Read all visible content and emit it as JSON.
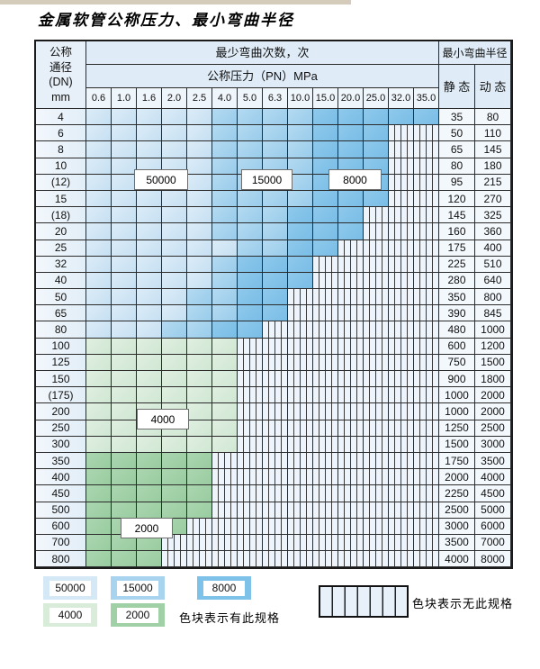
{
  "title": "金属软管公称压力、最小弯曲半径",
  "table": {
    "header": {
      "dn_lines": [
        "公称",
        "通径",
        "(DN)",
        "mm"
      ],
      "bend_cycles": "最少弯曲次数，次",
      "pressure_title": "公称压力（PN）MPa",
      "min_radius": "最小弯曲半径",
      "static_label": "静 态",
      "dynamic_label": "动 态"
    },
    "pressure_cols": [
      "0.6",
      "1.0",
      "1.6",
      "2.0",
      "2.5",
      "4.0",
      "5.0",
      "6.3",
      "10.0",
      "15.0",
      "20.0",
      "25.0",
      "32.0",
      "35.0"
    ],
    "rows": [
      {
        "dn": "4",
        "zone": "blue",
        "max": 13,
        "light": 4,
        "med": 8,
        "static": "35",
        "dynamic": "80"
      },
      {
        "dn": "6",
        "zone": "blue",
        "max": 11,
        "light": 4,
        "med": 8,
        "static": "50",
        "dynamic": "110"
      },
      {
        "dn": "8",
        "zone": "blue",
        "max": 11,
        "light": 4,
        "med": 8,
        "static": "65",
        "dynamic": "145"
      },
      {
        "dn": "10",
        "zone": "blue",
        "max": 11,
        "light": 4,
        "med": 8,
        "static": "80",
        "dynamic": "180"
      },
      {
        "dn": "(12)",
        "zone": "blue",
        "max": 11,
        "light": 4,
        "med": 8,
        "static": "95",
        "dynamic": "215"
      },
      {
        "dn": "15",
        "zone": "blue",
        "max": 11,
        "light": 4,
        "med": 8,
        "static": "120",
        "dynamic": "270"
      },
      {
        "dn": "(18)",
        "zone": "blue",
        "max": 10,
        "light": 4,
        "med": 7,
        "static": "145",
        "dynamic": "325"
      },
      {
        "dn": "20",
        "zone": "blue",
        "max": 10,
        "light": 4,
        "med": 7,
        "static": "160",
        "dynamic": "360"
      },
      {
        "dn": "25",
        "zone": "blue",
        "max": 9,
        "light": 5,
        "med": 7,
        "static": "175",
        "dynamic": "400"
      },
      {
        "dn": "32",
        "zone": "blue",
        "max": 8,
        "light": 4,
        "med": 5,
        "static": "225",
        "dynamic": "510"
      },
      {
        "dn": "40",
        "zone": "blue",
        "max": 8,
        "light": 4,
        "med": 5,
        "static": "280",
        "dynamic": "640"
      },
      {
        "dn": "50",
        "zone": "blue",
        "max": 7,
        "light": 3,
        "med": 5,
        "static": "350",
        "dynamic": "800"
      },
      {
        "dn": "65",
        "zone": "blue",
        "max": 7,
        "light": 3,
        "med": 5,
        "static": "390",
        "dynamic": "845"
      },
      {
        "dn": "80",
        "zone": "blue",
        "max": 6,
        "light": 2,
        "med": 4,
        "static": "480",
        "dynamic": "1000"
      },
      {
        "dn": "100",
        "zone": "g4",
        "max": 5,
        "static": "600",
        "dynamic": "1200"
      },
      {
        "dn": "125",
        "zone": "g4",
        "max": 5,
        "static": "750",
        "dynamic": "1500"
      },
      {
        "dn": "150",
        "zone": "g4",
        "max": 5,
        "static": "900",
        "dynamic": "1800"
      },
      {
        "dn": "(175)",
        "zone": "g4",
        "max": 5,
        "static": "1000",
        "dynamic": "2000"
      },
      {
        "dn": "200",
        "zone": "g4",
        "max": 5,
        "static": "1000",
        "dynamic": "2000"
      },
      {
        "dn": "250",
        "zone": "g4",
        "max": 5,
        "static": "1250",
        "dynamic": "2500"
      },
      {
        "dn": "300",
        "zone": "g4",
        "max": 5,
        "static": "1500",
        "dynamic": "3000"
      },
      {
        "dn": "350",
        "zone": "g2",
        "max": 4,
        "static": "1750",
        "dynamic": "3500"
      },
      {
        "dn": "400",
        "zone": "g2",
        "max": 4,
        "static": "2000",
        "dynamic": "4000"
      },
      {
        "dn": "450",
        "zone": "g2",
        "max": 4,
        "static": "2250",
        "dynamic": "4500"
      },
      {
        "dn": "500",
        "zone": "g2",
        "max": 4,
        "static": "2500",
        "dynamic": "5000"
      },
      {
        "dn": "600",
        "zone": "g2",
        "max": 3,
        "static": "3000",
        "dynamic": "6000"
      },
      {
        "dn": "700",
        "zone": "g2",
        "max": 2,
        "static": "3500",
        "dynamic": "7000"
      },
      {
        "dn": "800",
        "zone": "g2",
        "max": 2,
        "static": "4000",
        "dynamic": "8000"
      }
    ],
    "zone_labels": [
      {
        "value": "50000"
      },
      {
        "value": "15000"
      },
      {
        "value": "8000"
      },
      {
        "value": "4000"
      },
      {
        "value": "2000"
      }
    ]
  },
  "legend": {
    "items": [
      {
        "label": "50000",
        "color": "#d5e8f6"
      },
      {
        "label": "15000",
        "color": "#a9d4ef"
      },
      {
        "label": "8000",
        "color": "#7fc2e9"
      },
      {
        "label": "4000",
        "color": "#d9ecda"
      },
      {
        "label": "2000",
        "color": "#a0d1a6"
      }
    ],
    "has_spec_text": "色块表示有此规格",
    "no_spec_text": "色块表示无此规格"
  },
  "colors": {
    "blue_50000": "#d5e8f6",
    "blue_15000": "#a9d4ef",
    "blue_8000": "#7fc2e9",
    "green_4000": "#d9ecda",
    "green_2000": "#a0d1a6",
    "grid_line": "#2b2b2b",
    "striped_bg": "#eef4fb",
    "header_bg": "#dfecf7",
    "top_strip": "#d5cbba"
  }
}
